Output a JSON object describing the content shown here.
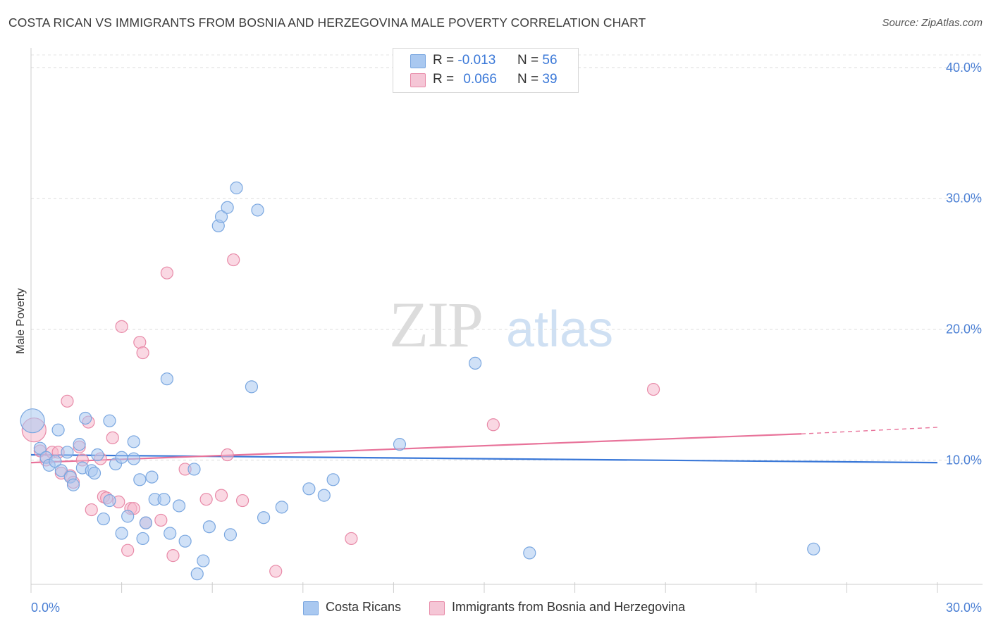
{
  "header": {
    "title": "COSTA RICAN VS IMMIGRANTS FROM BOSNIA AND HERZEGOVINA MALE POVERTY CORRELATION CHART",
    "source": "Source: ZipAtlas.com"
  },
  "watermark": {
    "zip": "ZIP",
    "atlas": "atlas"
  },
  "legend_top": {
    "rows": [
      {
        "r_label": "R =",
        "r_value": "-0.013",
        "n_label": "N =",
        "n_value": "56"
      },
      {
        "r_label": "R =",
        "r_value": "0.066",
        "n_label": "N =",
        "n_value": "39"
      }
    ]
  },
  "legend_bottom": {
    "items": [
      {
        "label": "Costa Ricans"
      },
      {
        "label": "Immigrants from Bosnia and Herzegovina"
      }
    ]
  },
  "colors": {
    "blue_fill": "#a9c8f0",
    "blue_stroke": "#7aa7e0",
    "blue_line": "#3a78d8",
    "pink_fill": "#f5b8cc",
    "pink_stroke": "#e88aa8",
    "pink_line": "#e8739a",
    "tick_text": "#4a7fd4"
  },
  "chart_data": {
    "type": "scatter",
    "title": "COSTA RICAN VS IMMIGRANTS FROM BOSNIA AND HERZEGOVINA MALE POVERTY CORRELATION CHART",
    "xlabel": "",
    "ylabel": "Male Poverty",
    "xlim": [
      0,
      30
    ],
    "ylim": [
      0.5,
      41.5
    ],
    "x_tick_labels": [
      {
        "value": 0,
        "label": "0.0%"
      },
      {
        "value": 30,
        "label": "30.0%"
      }
    ],
    "y_tick_labels": [
      {
        "value": 10,
        "label": "10.0%"
      },
      {
        "value": 20,
        "label": "20.0%"
      },
      {
        "value": 30,
        "label": "30.0%"
      },
      {
        "value": 40,
        "label": "40.0%"
      }
    ],
    "grid": true,
    "legend_position": "top-center",
    "series": [
      {
        "name": "Costa Ricans",
        "color": "#a9c8f0",
        "trend": {
          "x": [
            0,
            30
          ],
          "y": [
            10.4,
            9.8
          ]
        },
        "points": [
          {
            "x": 0.05,
            "y": 13.0,
            "size": "large"
          },
          {
            "x": 0.3,
            "y": 10.9
          },
          {
            "x": 0.5,
            "y": 10.2
          },
          {
            "x": 0.6,
            "y": 9.6
          },
          {
            "x": 0.8,
            "y": 9.9
          },
          {
            "x": 0.9,
            "y": 12.3
          },
          {
            "x": 1.0,
            "y": 9.2
          },
          {
            "x": 1.2,
            "y": 10.6
          },
          {
            "x": 1.3,
            "y": 8.7
          },
          {
            "x": 1.4,
            "y": 8.1
          },
          {
            "x": 1.6,
            "y": 11.2
          },
          {
            "x": 1.7,
            "y": 9.4
          },
          {
            "x": 1.8,
            "y": 13.2
          },
          {
            "x": 2.0,
            "y": 9.2
          },
          {
            "x": 2.1,
            "y": 9.0
          },
          {
            "x": 2.2,
            "y": 10.4
          },
          {
            "x": 2.4,
            "y": 5.5
          },
          {
            "x": 2.6,
            "y": 6.9
          },
          {
            "x": 2.6,
            "y": 13.0
          },
          {
            "x": 2.8,
            "y": 9.7
          },
          {
            "x": 3.0,
            "y": 10.2
          },
          {
            "x": 3.0,
            "y": 4.4
          },
          {
            "x": 3.2,
            "y": 5.7
          },
          {
            "x": 3.4,
            "y": 11.4
          },
          {
            "x": 3.4,
            "y": 10.1
          },
          {
            "x": 3.6,
            "y": 8.5
          },
          {
            "x": 3.7,
            "y": 4.0
          },
          {
            "x": 3.8,
            "y": 5.2
          },
          {
            "x": 4.0,
            "y": 8.7
          },
          {
            "x": 4.1,
            "y": 7.0
          },
          {
            "x": 4.4,
            "y": 7.0
          },
          {
            "x": 4.5,
            "y": 16.2
          },
          {
            "x": 4.6,
            "y": 4.4
          },
          {
            "x": 4.9,
            "y": 6.5
          },
          {
            "x": 5.1,
            "y": 3.8
          },
          {
            "x": 5.4,
            "y": 9.3
          },
          {
            "x": 5.5,
            "y": 1.3
          },
          {
            "x": 5.7,
            "y": 2.3
          },
          {
            "x": 5.9,
            "y": 4.9
          },
          {
            "x": 6.2,
            "y": 27.9
          },
          {
            "x": 6.3,
            "y": 28.6
          },
          {
            "x": 6.5,
            "y": 29.3
          },
          {
            "x": 6.6,
            "y": 4.3
          },
          {
            "x": 6.8,
            "y": 30.8
          },
          {
            "x": 7.3,
            "y": 15.6
          },
          {
            "x": 7.5,
            "y": 29.1
          },
          {
            "x": 7.7,
            "y": 5.6
          },
          {
            "x": 8.3,
            "y": 6.4
          },
          {
            "x": 9.2,
            "y": 7.8
          },
          {
            "x": 9.7,
            "y": 7.3
          },
          {
            "x": 10.0,
            "y": 8.5
          },
          {
            "x": 12.2,
            "y": 11.2
          },
          {
            "x": 14.7,
            "y": 17.4
          },
          {
            "x": 16.5,
            "y": 2.9
          },
          {
            "x": 25.9,
            "y": 3.2
          }
        ]
      },
      {
        "name": "Immigrants from Bosnia and Herzegovina",
        "color": "#f5b8cc",
        "trend": {
          "x": [
            0,
            25.5
          ],
          "y": [
            9.8,
            12.0
          ],
          "dashed_to": {
            "x": 30,
            "y": 12.5
          }
        },
        "points": [
          {
            "x": 0.1,
            "y": 12.3,
            "size": "large"
          },
          {
            "x": 0.3,
            "y": 10.7
          },
          {
            "x": 0.5,
            "y": 10.0
          },
          {
            "x": 0.7,
            "y": 10.6
          },
          {
            "x": 0.9,
            "y": 10.6
          },
          {
            "x": 1.0,
            "y": 9.0
          },
          {
            "x": 1.2,
            "y": 14.5
          },
          {
            "x": 1.3,
            "y": 8.8
          },
          {
            "x": 1.4,
            "y": 8.3
          },
          {
            "x": 1.6,
            "y": 11.0
          },
          {
            "x": 1.7,
            "y": 10.0
          },
          {
            "x": 1.9,
            "y": 12.9
          },
          {
            "x": 2.0,
            "y": 6.2
          },
          {
            "x": 2.3,
            "y": 10.1
          },
          {
            "x": 2.4,
            "y": 7.2
          },
          {
            "x": 2.5,
            "y": 7.1
          },
          {
            "x": 2.7,
            "y": 11.7
          },
          {
            "x": 2.9,
            "y": 6.8
          },
          {
            "x": 3.0,
            "y": 20.2
          },
          {
            "x": 3.2,
            "y": 3.1
          },
          {
            "x": 3.3,
            "y": 6.3
          },
          {
            "x": 3.4,
            "y": 6.3
          },
          {
            "x": 3.6,
            "y": 19.0
          },
          {
            "x": 3.7,
            "y": 18.2
          },
          {
            "x": 3.8,
            "y": 5.2
          },
          {
            "x": 4.3,
            "y": 5.4
          },
          {
            "x": 4.5,
            "y": 24.3
          },
          {
            "x": 4.7,
            "y": 2.7
          },
          {
            "x": 5.1,
            "y": 9.3
          },
          {
            "x": 5.8,
            "y": 7.0
          },
          {
            "x": 6.3,
            "y": 7.3
          },
          {
            "x": 6.5,
            "y": 10.4
          },
          {
            "x": 6.7,
            "y": 25.3
          },
          {
            "x": 7.0,
            "y": 6.9
          },
          {
            "x": 8.1,
            "y": 1.5
          },
          {
            "x": 10.6,
            "y": 4.0
          },
          {
            "x": 15.3,
            "y": 12.7
          },
          {
            "x": 20.6,
            "y": 15.4
          }
        ]
      }
    ]
  }
}
